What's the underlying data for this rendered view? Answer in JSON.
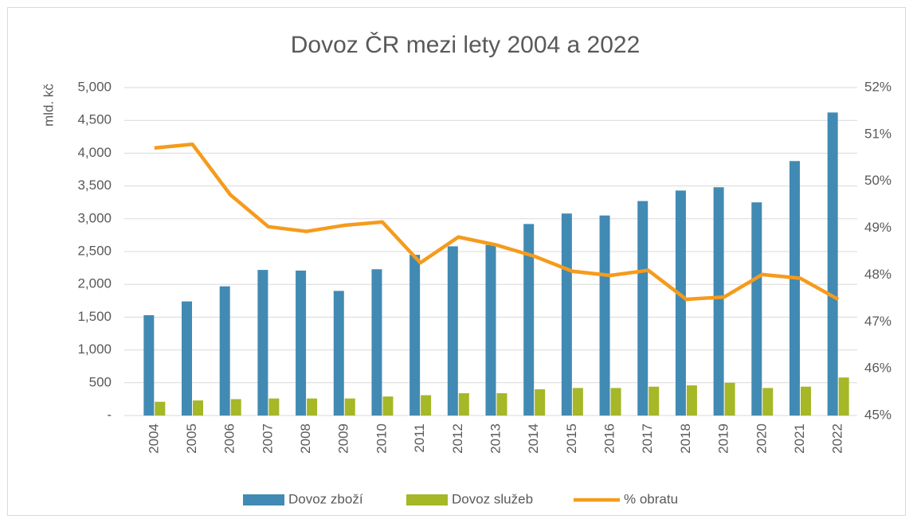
{
  "chart_data": {
    "type": "bar",
    "title": "Dovoz ČR mezi lety 2004 a 2022",
    "y_label": "mld. kč",
    "categories": [
      "2004",
      "2005",
      "2006",
      "2007",
      "2008",
      "2009",
      "2010",
      "2011",
      "2012",
      "2013",
      "2014",
      "2015",
      "2016",
      "2017",
      "2018",
      "2019",
      "2020",
      "2021",
      "2022"
    ],
    "series": [
      {
        "name": "Dovoz zboží",
        "color": "#418ab3",
        "values": [
          1530,
          1740,
          1970,
          2220,
          2210,
          1900,
          2230,
          2450,
          2580,
          2600,
          2920,
          3080,
          3050,
          3270,
          3430,
          3480,
          3250,
          3880,
          4620
        ]
      },
      {
        "name": "Dovoz služeb",
        "color": "#a6b727",
        "values": [
          210,
          230,
          250,
          260,
          260,
          260,
          290,
          310,
          340,
          340,
          400,
          420,
          420,
          440,
          460,
          500,
          420,
          440,
          580
        ]
      },
      {
        "name": "% obratu",
        "color": "#f59b1c",
        "type": "line",
        "axis": "y2",
        "values": [
          50.71,
          50.79,
          49.71,
          49.03,
          48.93,
          49.06,
          49.13,
          48.26,
          48.81,
          48.64,
          48.4,
          48.08,
          47.99,
          48.1,
          47.48,
          47.53,
          48.01,
          47.93,
          47.48
        ]
      }
    ],
    "ylim": [
      0,
      5000
    ],
    "yticks": [
      {
        "value": 0,
        "label": "-"
      },
      500,
      {
        "value": 1000,
        "label": "1,000"
      },
      {
        "value": 1500,
        "label": "1,500"
      },
      {
        "value": 2000,
        "label": "2,000"
      },
      {
        "value": 2500,
        "label": "2,500"
      },
      {
        "value": 3000,
        "label": "3,000"
      },
      {
        "value": 3500,
        "label": "3,500"
      },
      {
        "value": 4000,
        "label": "4,000"
      },
      {
        "value": 4500,
        "label": "4,500"
      },
      {
        "value": 5000,
        "label": "5,000"
      }
    ],
    "y2lim": [
      45,
      52
    ],
    "y2ticks": [
      {
        "value": 45,
        "label": "45%"
      },
      {
        "value": 46,
        "label": "46%"
      },
      {
        "value": 47,
        "label": "47%"
      },
      {
        "value": 48,
        "label": "48%"
      },
      {
        "value": 49,
        "label": "49%"
      },
      {
        "value": 50,
        "label": "50%"
      },
      {
        "value": 51,
        "label": "51%"
      },
      {
        "value": 52,
        "label": "52%"
      }
    ],
    "grid": true,
    "legend": "bottom"
  }
}
